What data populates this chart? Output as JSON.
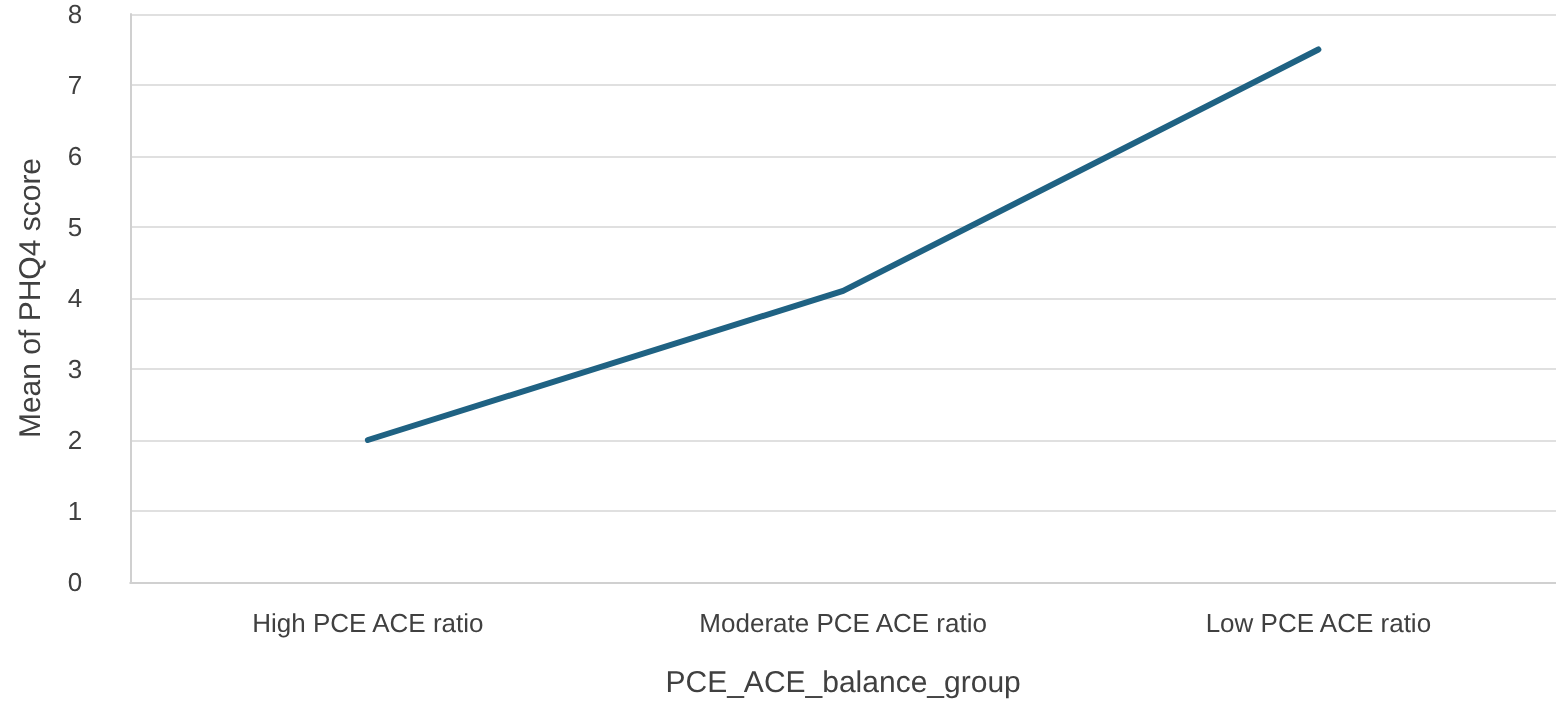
{
  "chart_data": {
    "type": "line",
    "xlabel": "PCE_ACE_balance_group",
    "ylabel": "Mean of PHQ4 score",
    "categories": [
      "High PCE ACE ratio",
      "Moderate PCE ACE ratio",
      "Low PCE ACE ratio"
    ],
    "series": [
      {
        "color": "#1f6283",
        "values": [
          2.0,
          4.1,
          7.5
        ]
      }
    ],
    "ylim": [
      0,
      8
    ],
    "yticks": [
      0,
      1,
      2,
      3,
      4,
      5,
      6,
      7,
      8
    ],
    "grid": "y",
    "marker": "none",
    "line_style": "solid"
  }
}
